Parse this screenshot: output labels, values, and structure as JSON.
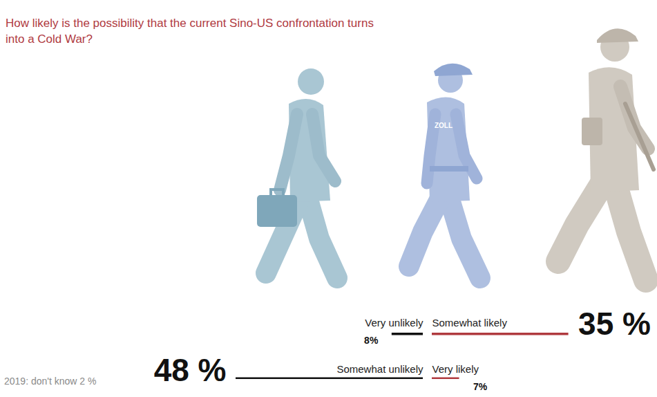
{
  "chart_data": {
    "type": "bar",
    "orientation": "horizontal",
    "title": "How likely is the possibility that the current Sino-US confrontation turns into a Cold War?",
    "categories": [
      "Somewhat unlikely",
      "Very likely",
      "Very unlikely",
      "Somewhat likely"
    ],
    "values": [
      48,
      7,
      8,
      35
    ],
    "value_labels": [
      "48 %",
      "7%",
      "8%",
      "35 %"
    ],
    "colors": [
      "#111111",
      "#b03a3f",
      "#111111",
      "#b03a3f"
    ],
    "data_labels": true,
    "tick_labels": false,
    "grid": false,
    "footnote": "2019: don't know 2 %",
    "figure_label": "ZOLL"
  }
}
